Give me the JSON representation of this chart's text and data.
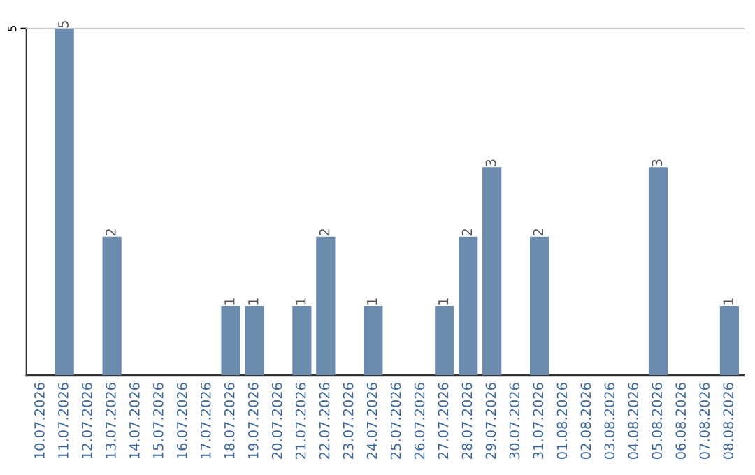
{
  "chart_data": {
    "type": "bar",
    "categories": [
      "10.07.2026",
      "11.07.2026",
      "12.07.2026",
      "13.07.2026",
      "14.07.2026",
      "15.07.2026",
      "16.07.2026",
      "17.07.2026",
      "18.07.2026",
      "19.07.2026",
      "20.07.2026",
      "21.07.2026",
      "22.07.2026",
      "23.07.2026",
      "24.07.2026",
      "25.07.2026",
      "26.07.2026",
      "27.07.2026",
      "28.07.2026",
      "29.07.2026",
      "30.07.2026",
      "31.07.2026",
      "01.08.2026",
      "02.08.2026",
      "03.08.2026",
      "04.08.2026",
      "05.08.2026",
      "06.08.2026",
      "07.08.2026",
      "08.08.2026"
    ],
    "values": [
      0,
      5,
      0,
      2,
      0,
      0,
      0,
      0,
      1,
      1,
      0,
      1,
      2,
      0,
      1,
      0,
      0,
      1,
      2,
      3,
      0,
      2,
      0,
      0,
      0,
      0,
      3,
      0,
      0,
      1
    ],
    "value_labels": [
      null,
      "5",
      null,
      "2",
      null,
      null,
      null,
      null,
      "1",
      "1",
      null,
      "1",
      "2",
      null,
      "1",
      null,
      null,
      "1",
      "2",
      "3",
      null,
      "2",
      null,
      null,
      null,
      null,
      "3",
      null,
      null,
      "1"
    ],
    "color": "#6b8cae",
    "ylim": [
      0,
      5
    ],
    "yticks": [
      5
    ]
  }
}
